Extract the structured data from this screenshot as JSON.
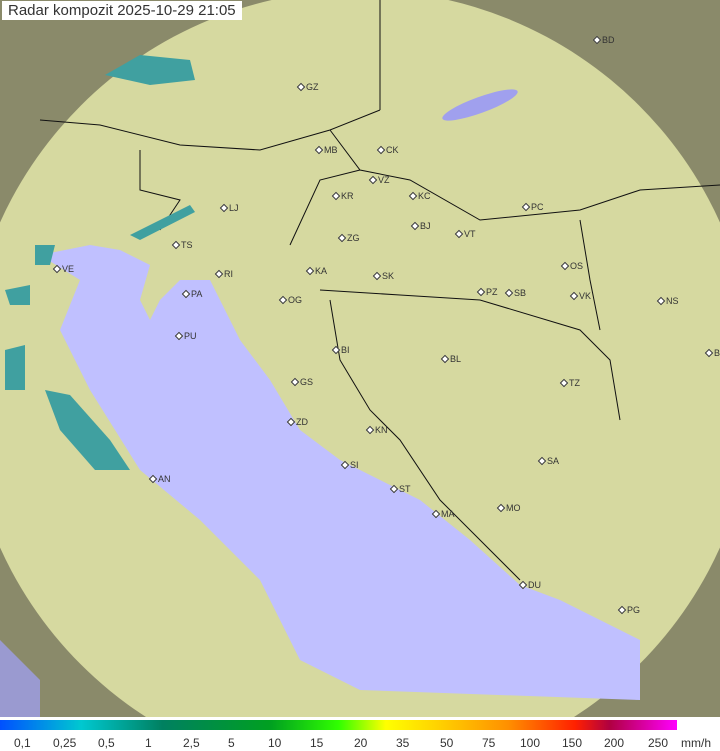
{
  "title": "Radar kompozit  2025-10-29   21:05",
  "cities": [
    "GZ",
    "BD",
    "MB",
    "CK",
    "VZ",
    "KR",
    "KC",
    "PC",
    "LJ",
    "ZG",
    "BJ",
    "VT",
    "TS",
    "VE",
    "RI",
    "KA",
    "SK",
    "OS",
    "PA",
    "OG",
    "PZ",
    "SB",
    "VK",
    "NS",
    "PU",
    "BI",
    "BL",
    "BG",
    "GS",
    "TZ",
    "ZD",
    "KN",
    "SI",
    "SA",
    "AN",
    "ST",
    "MA",
    "MO",
    "DU",
    "PG"
  ],
  "legend": {
    "ticks": [
      "0,1",
      "0,25",
      "0,5",
      "1",
      "2,5",
      "5",
      "10",
      "15",
      "20",
      "35",
      "50",
      "75",
      "100",
      "150",
      "200",
      "250"
    ],
    "unit": "mm/h"
  },
  "colors": {
    "land": "#d8dc9c",
    "sea": "#c0c0ff",
    "outside": "#8c8c6c",
    "precip_light": "#40a0a0"
  }
}
